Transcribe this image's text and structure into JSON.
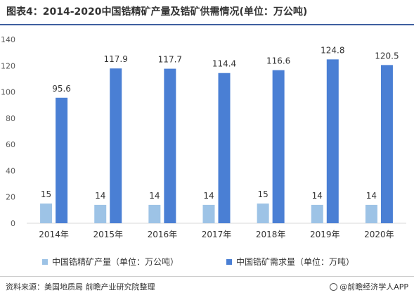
{
  "header": {
    "title": "图表4：2014-2020中国锆精矿产量及锆矿供需情况(单位：万公吨)"
  },
  "footer": {
    "source": "资料来源：美国地质局 前瞻产业研究院整理",
    "brand": "@前瞻经济学人APP"
  },
  "colors": {
    "series1": "#9dc3e6",
    "series2": "#4a7fd4",
    "axis": "#d9d9d9",
    "text": "#595959"
  },
  "chart_data": {
    "type": "bar",
    "categories": [
      "2014年",
      "2015年",
      "2016年",
      "2017年",
      "2018年",
      "2019年",
      "2020年"
    ],
    "series": [
      {
        "name": "中国锆精矿产量（单位：万公吨）",
        "values": [
          15,
          14,
          14,
          14,
          15,
          14,
          14
        ]
      },
      {
        "name": "中国锆矿需求量（单位：万吨）",
        "values": [
          95.6,
          117.9,
          117.7,
          114.4,
          116.6,
          124.8,
          120.5
        ]
      }
    ],
    "data_labels": [
      [
        "15",
        "14",
        "14",
        "14",
        "15",
        "14",
        "14"
      ],
      [
        "95.6",
        "117.9",
        "117.7",
        "114.4",
        "116.6",
        "124.8",
        "120.5"
      ]
    ],
    "ylim": [
      0,
      140
    ],
    "yticks": [
      "0",
      "20",
      "40",
      "60",
      "80",
      "100",
      "120",
      "140"
    ],
    "grid": false,
    "legend_position": "bottom"
  }
}
